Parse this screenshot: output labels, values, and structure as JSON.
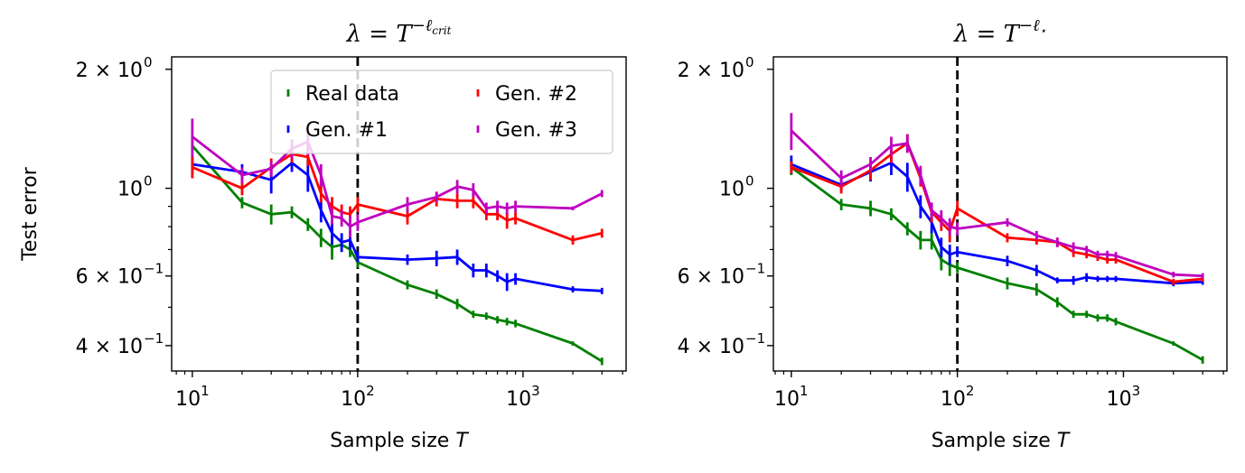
{
  "chart_data": [
    {
      "type": "line",
      "title": "λ = T^(−ℓ_crit)",
      "title_parts": {
        "lhs": "λ = T",
        "exp": "−ℓ",
        "sub": "crit"
      },
      "xlabel": "Sample size T",
      "xlabel_parts": {
        "text": "Sample size ",
        "var": "T"
      },
      "ylabel": "Test error",
      "xscale": "log",
      "yscale": "log",
      "xlim": [
        7.5,
        4200
      ],
      "ylim": [
        0.345,
        2.15
      ],
      "x_ticks": [
        {
          "value": 10,
          "base": "10",
          "exp": "1"
        },
        {
          "value": 100,
          "base": "10",
          "exp": "2"
        },
        {
          "value": 1000,
          "base": "10",
          "exp": "3"
        }
      ],
      "y_ticks": [
        {
          "value": 2.0,
          "mant": "2 × 10",
          "exp": "0"
        },
        {
          "value": 1.0,
          "mant": "10",
          "exp": "0"
        },
        {
          "value": 0.6,
          "mant": "6 × 10",
          "exp": "−1"
        },
        {
          "value": 0.4,
          "mant": "4 × 10",
          "exp": "−1"
        }
      ],
      "y_minor_ticks": [
        0.5,
        0.7,
        0.8,
        0.9
      ],
      "vline": {
        "x": 100,
        "style": "dashed",
        "color": "#000000"
      },
      "legend": {
        "location": "top-right",
        "columns": 2
      },
      "series": [
        {
          "name": "Real data",
          "color": "#008000",
          "x": [
            10,
            20,
            30,
            40,
            50,
            60,
            70,
            80,
            90,
            100,
            200,
            300,
            400,
            500,
            600,
            700,
            800,
            900,
            2000,
            3000
          ],
          "y": [
            1.28,
            0.92,
            0.86,
            0.87,
            0.81,
            0.75,
            0.71,
            0.72,
            0.7,
            0.65,
            0.57,
            0.54,
            0.51,
            0.48,
            0.475,
            0.465,
            0.46,
            0.455,
            0.405,
            0.365
          ],
          "err": [
            0.04,
            0.03,
            0.05,
            0.03,
            0.03,
            0.04,
            0.05,
            0.03,
            0.03,
            0.02,
            0.015,
            0.015,
            0.015,
            0.01,
            0.01,
            0.01,
            0.01,
            0.01,
            0.005,
            0.008
          ]
        },
        {
          "name": "Gen. #1",
          "color": "#0000ff",
          "x": [
            10,
            20,
            30,
            40,
            50,
            60,
            70,
            80,
            90,
            100,
            200,
            300,
            400,
            500,
            600,
            700,
            800,
            900,
            2000,
            3000
          ],
          "y": [
            1.15,
            1.1,
            1.05,
            1.16,
            1.08,
            0.88,
            0.77,
            0.73,
            0.74,
            0.67,
            0.66,
            0.665,
            0.67,
            0.62,
            0.62,
            0.6,
            0.58,
            0.59,
            0.555,
            0.55
          ],
          "err": [
            0.06,
            0.05,
            0.08,
            0.06,
            0.1,
            0.06,
            0.05,
            0.04,
            0.04,
            0.02,
            0.02,
            0.03,
            0.03,
            0.025,
            0.025,
            0.02,
            0.03,
            0.02,
            0.01,
            0.01
          ]
        },
        {
          "name": "Gen. #2",
          "color": "#ff0000",
          "x": [
            10,
            20,
            30,
            40,
            50,
            60,
            70,
            80,
            90,
            100,
            200,
            300,
            400,
            500,
            600,
            700,
            800,
            900,
            2000,
            3000
          ],
          "y": [
            1.13,
            1.0,
            1.13,
            1.22,
            1.2,
            0.97,
            0.9,
            0.87,
            0.86,
            0.91,
            0.85,
            0.94,
            0.93,
            0.93,
            0.86,
            0.86,
            0.83,
            0.84,
            0.74,
            0.77
          ],
          "err": [
            0.07,
            0.04,
            0.06,
            0.06,
            0.06,
            0.05,
            0.05,
            0.04,
            0.04,
            0.04,
            0.04,
            0.04,
            0.04,
            0.04,
            0.03,
            0.03,
            0.04,
            0.03,
            0.02,
            0.02
          ]
        },
        {
          "name": "Gen. #3",
          "color": "#bf00bf",
          "x": [
            10,
            20,
            30,
            40,
            50,
            60,
            70,
            80,
            90,
            100,
            200,
            300,
            400,
            500,
            600,
            700,
            800,
            900,
            2000,
            3000
          ],
          "y": [
            1.35,
            1.08,
            1.12,
            1.26,
            1.31,
            1.08,
            0.85,
            0.84,
            0.8,
            0.82,
            0.91,
            0.95,
            1.01,
            0.99,
            0.89,
            0.9,
            0.89,
            0.9,
            0.89,
            0.97
          ],
          "err": [
            0.15,
            0.05,
            0.05,
            0.07,
            0.1,
            0.07,
            0.04,
            0.04,
            0.05,
            0.04,
            0.04,
            0.03,
            0.04,
            0.04,
            0.03,
            0.03,
            0.03,
            0.03,
            0.01,
            0.02
          ]
        }
      ]
    },
    {
      "type": "line",
      "title": "λ = T^(−ℓ⋆)",
      "title_parts": {
        "lhs": "λ = T",
        "exp": "−ℓ",
        "sub": "⋆"
      },
      "xlabel": "Sample size T",
      "xlabel_parts": {
        "text": "Sample size ",
        "var": "T"
      },
      "ylabel": "",
      "xscale": "log",
      "yscale": "log",
      "xlim": [
        7.8,
        4200
      ],
      "ylim": [
        0.345,
        2.15
      ],
      "x_ticks": [
        {
          "value": 10,
          "base": "10",
          "exp": "1"
        },
        {
          "value": 100,
          "base": "10",
          "exp": "2"
        },
        {
          "value": 1000,
          "base": "10",
          "exp": "3"
        }
      ],
      "y_ticks": [
        {
          "value": 2.0,
          "mant": "2 × 10",
          "exp": "0"
        },
        {
          "value": 1.0,
          "mant": "10",
          "exp": "0"
        },
        {
          "value": 0.6,
          "mant": "6 × 10",
          "exp": "−1"
        },
        {
          "value": 0.4,
          "mant": "4 × 10",
          "exp": "−1"
        }
      ],
      "y_minor_ticks": [
        0.5,
        0.7,
        0.8,
        0.9
      ],
      "vline": {
        "x": 100,
        "style": "dashed",
        "color": "#000000"
      },
      "legend": null,
      "series": [
        {
          "name": "Real data",
          "color": "#008000",
          "x": [
            10,
            20,
            30,
            40,
            50,
            60,
            70,
            80,
            90,
            100,
            200,
            300,
            400,
            500,
            600,
            700,
            800,
            900,
            2000,
            3000
          ],
          "y": [
            1.13,
            0.91,
            0.89,
            0.86,
            0.79,
            0.74,
            0.74,
            0.66,
            0.64,
            0.63,
            0.575,
            0.555,
            0.515,
            0.48,
            0.48,
            0.47,
            0.47,
            0.46,
            0.405,
            0.368
          ],
          "err": [
            0.05,
            0.03,
            0.04,
            0.03,
            0.03,
            0.04,
            0.04,
            0.04,
            0.04,
            0.02,
            0.02,
            0.02,
            0.015,
            0.01,
            0.01,
            0.01,
            0.01,
            0.01,
            0.005,
            0.008
          ]
        },
        {
          "name": "Gen. #1",
          "color": "#0000ff",
          "x": [
            10,
            20,
            30,
            40,
            50,
            60,
            70,
            80,
            90,
            100,
            200,
            300,
            400,
            500,
            600,
            700,
            800,
            900,
            2000,
            3000
          ],
          "y": [
            1.15,
            1.02,
            1.1,
            1.16,
            1.07,
            0.9,
            0.82,
            0.71,
            0.68,
            0.69,
            0.655,
            0.62,
            0.585,
            0.585,
            0.595,
            0.59,
            0.59,
            0.59,
            0.575,
            0.58
          ],
          "err": [
            0.06,
            0.04,
            0.06,
            0.08,
            0.09,
            0.06,
            0.05,
            0.04,
            0.04,
            0.02,
            0.02,
            0.02,
            0.01,
            0.015,
            0.015,
            0.01,
            0.01,
            0.01,
            0.01,
            0.01
          ]
        },
        {
          "name": "Gen. #2",
          "color": "#ff0000",
          "x": [
            10,
            20,
            30,
            40,
            50,
            60,
            70,
            80,
            90,
            100,
            200,
            300,
            400,
            500,
            600,
            700,
            800,
            900,
            2000,
            3000
          ],
          "y": [
            1.13,
            1.01,
            1.11,
            1.22,
            1.3,
            1.06,
            0.87,
            0.82,
            0.78,
            0.89,
            0.75,
            0.74,
            0.73,
            0.69,
            0.68,
            0.67,
            0.66,
            0.66,
            0.58,
            0.59
          ],
          "err": [
            0.04,
            0.04,
            0.06,
            0.06,
            0.07,
            0.05,
            0.05,
            0.04,
            0.05,
            0.04,
            0.02,
            0.02,
            0.02,
            0.02,
            0.015,
            0.015,
            0.015,
            0.015,
            0.01,
            0.01
          ]
        },
        {
          "name": "Gen. #3",
          "color": "#bf00bf",
          "x": [
            10,
            20,
            30,
            40,
            50,
            60,
            70,
            80,
            90,
            100,
            200,
            300,
            400,
            500,
            600,
            700,
            800,
            900,
            2000,
            3000
          ],
          "y": [
            1.4,
            1.06,
            1.15,
            1.28,
            1.3,
            1.08,
            0.88,
            0.84,
            0.8,
            0.79,
            0.82,
            0.76,
            0.73,
            0.71,
            0.7,
            0.68,
            0.68,
            0.675,
            0.605,
            0.6
          ],
          "err": [
            0.15,
            0.05,
            0.05,
            0.07,
            0.07,
            0.06,
            0.04,
            0.04,
            0.04,
            0.03,
            0.02,
            0.02,
            0.02,
            0.02,
            0.015,
            0.015,
            0.015,
            0.015,
            0.01,
            0.01
          ]
        }
      ]
    }
  ]
}
